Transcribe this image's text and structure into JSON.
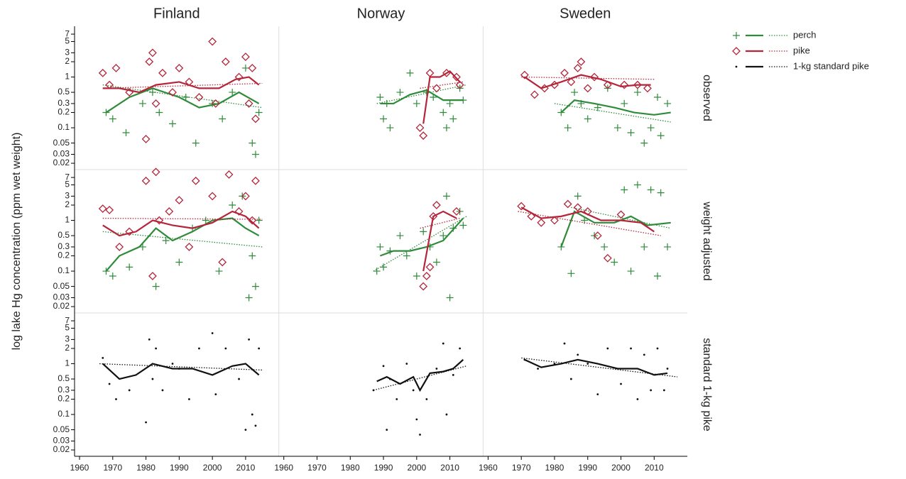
{
  "chart_data": {
    "type": "scatter",
    "y_label": "log lake Hg concentration (ppm wet weight)",
    "log_y": true,
    "columns": [
      "Finland",
      "Norway",
      "Sweden"
    ],
    "rows": [
      "observed",
      "weight adjusted",
      "standard 1-kg pike"
    ],
    "xlim": [
      1958.5,
      2020
    ],
    "xticks": [
      1960,
      1970,
      1980,
      1990,
      2000,
      2010
    ],
    "ylim": [
      0.015,
      10
    ],
    "yticks": [
      0.02,
      0.03,
      0.05,
      0.1,
      0.2,
      0.3,
      0.5,
      1,
      2,
      3,
      5,
      7
    ],
    "series": [
      {
        "name": "perch",
        "color": "#2e8b3a",
        "marker": "plus"
      },
      {
        "name": "pike",
        "color": "#b5253a",
        "marker": "diamond"
      },
      {
        "name": "1-kg standard pike",
        "color": "#111111",
        "marker": "dot"
      }
    ],
    "panels": [
      [
        [
          {
            "series": 0,
            "x": [
              1968,
              1970,
              1974,
              1979,
              1982,
              1984,
              1988,
              1992,
              1995,
              2000,
              2003,
              2006,
              2010,
              2012,
              2013,
              2014
            ],
            "values": [
              0.2,
              0.15,
              0.08,
              0.3,
              0.5,
              0.2,
              0.12,
              0.4,
              0.05,
              0.3,
              0.15,
              0.5,
              1.5,
              0.05,
              0.03,
              0.2
            ],
            "smooth_x": [
              1968,
              1975,
              1982,
              1990,
              1996,
              2002,
              2008,
              2014
            ],
            "smooth": [
              0.2,
              0.4,
              0.6,
              0.4,
              0.25,
              0.3,
              0.5,
              0.3
            ],
            "trend_x": [
              1967,
              2015
            ],
            "trend": [
              0.7,
              0.25
            ]
          },
          {
            "series": 1,
            "x": [
              1967,
              1969,
              1971,
              1975,
              1980,
              1981,
              1982,
              1983,
              1985,
              1988,
              1990,
              1993,
              1996,
              2000,
              2001,
              2004,
              2008,
              2010,
              2011,
              2012,
              2013
            ],
            "values": [
              1.2,
              0.7,
              1.5,
              0.5,
              0.06,
              2,
              3,
              0.3,
              1.2,
              0.5,
              1.5,
              0.8,
              0.4,
              5,
              0.3,
              2,
              1,
              2.5,
              0.3,
              1.5,
              0.15
            ],
            "smooth_x": [
              1967,
              1972,
              1978,
              1983,
              1990,
              1996,
              2002,
              2007,
              2011,
              2014
            ],
            "smooth": [
              0.6,
              0.6,
              0.5,
              0.7,
              0.8,
              0.6,
              0.6,
              0.9,
              1,
              0.7
            ],
            "trend_x": [
              1967,
              2015
            ],
            "trend": [
              0.6,
              0.75
            ]
          }
        ],
        [
          {
            "series": 0,
            "x": [
              1989,
              1990,
              1991,
              1992,
              1995,
              1998,
              2000,
              2003,
              2005,
              2008,
              2009,
              2010,
              2011,
              2013,
              2014
            ],
            "values": [
              0.4,
              0.15,
              0.3,
              0.1,
              0.5,
              1.2,
              0.3,
              0.5,
              0.4,
              0.2,
              0.1,
              0.3,
              0.15,
              0.6,
              0.35
            ],
            "smooth_x": [
              1989,
              1993,
              1998,
              2003,
              2008,
              2014
            ],
            "smooth": [
              0.3,
              0.3,
              0.45,
              0.55,
              0.35,
              0.35
            ],
            "trend_x": [
              1988,
              2015
            ],
            "trend": [
              0.3,
              0.7
            ]
          },
          {
            "series": 1,
            "x": [
              2001,
              2002,
              2004,
              2006,
              2009,
              2012,
              2013
            ],
            "values": [
              0.1,
              0.07,
              1.2,
              0.6,
              1.2,
              1,
              0.7
            ],
            "smooth_x": [
              2002,
              2004,
              2007,
              2010,
              2013
            ],
            "smooth": [
              0.12,
              1,
              1,
              1.3,
              0.8
            ],
            "trend_x": [
              2001,
              2014
            ],
            "trend": [
              0.6,
              0.8
            ]
          }
        ],
        [
          {
            "series": 0,
            "x": [
              1982,
              1984,
              1986,
              1988,
              1990,
              1993,
              1996,
              1999,
              2001,
              2003,
              2005,
              2007,
              2009,
              2011,
              2012,
              2014
            ],
            "values": [
              0.2,
              0.1,
              0.5,
              0.3,
              0.15,
              0.25,
              0.6,
              0.1,
              0.3,
              0.08,
              0.5,
              0.05,
              0.1,
              0.4,
              0.07,
              0.3
            ],
            "smooth_x": [
              1982,
              1986,
              1992,
              1998,
              2004,
              2010,
              2015
            ],
            "smooth": [
              0.2,
              0.35,
              0.3,
              0.25,
              0.2,
              0.18,
              0.2
            ],
            "trend_x": [
              1980,
              2015
            ],
            "trend": [
              0.3,
              0.13
            ]
          },
          {
            "series": 1,
            "x": [
              1971,
              1974,
              1977,
              1980,
              1983,
              1985,
              1987,
              1988,
              1990,
              1992,
              1996,
              2001,
              2005,
              2008
            ],
            "values": [
              1.1,
              0.45,
              0.6,
              0.7,
              1.2,
              0.8,
              1.5,
              2,
              0.6,
              1,
              0.7,
              0.7,
              0.7,
              0.6
            ],
            "smooth_x": [
              1971,
              1976,
              1982,
              1988,
              1994,
              2000,
              2005,
              2009
            ],
            "smooth": [
              1,
              0.6,
              0.8,
              1.1,
              0.9,
              0.65,
              0.7,
              0.7
            ],
            "trend_x": [
              1970,
              2010
            ],
            "trend": [
              1,
              0.9
            ]
          }
        ]
      ],
      [
        [
          {
            "series": 0,
            "x": [
              1968,
              1970,
              1975,
              1979,
              1983,
              1986,
              1990,
              1994,
              1998,
              2002,
              2006,
              2009,
              2011,
              2012,
              2013,
              2014
            ],
            "values": [
              0.1,
              0.08,
              0.12,
              0.3,
              0.05,
              0.4,
              0.15,
              0.7,
              1,
              0.1,
              2,
              3,
              0.03,
              0.2,
              0.05,
              1
            ],
            "smooth_x": [
              1968,
              1972,
              1978,
              1983,
              1988,
              1994,
              2000,
              2006,
              2010,
              2014
            ],
            "smooth": [
              0.1,
              0.2,
              0.3,
              0.7,
              0.4,
              0.6,
              1,
              1.1,
              0.7,
              0.5
            ],
            "trend_x": [
              1967,
              2015
            ],
            "trend": [
              0.6,
              0.3
            ]
          },
          {
            "series": 1,
            "x": [
              1967,
              1969,
              1972,
              1975,
              1980,
              1982,
              1983,
              1984,
              1987,
              1990,
              1993,
              1995,
              2000,
              2003,
              2005,
              2008,
              2010,
              2012,
              2013
            ],
            "values": [
              1.7,
              1.6,
              0.3,
              0.6,
              6,
              0.08,
              9,
              1,
              1.5,
              2.5,
              0.3,
              6,
              3,
              0.15,
              8,
              1.5,
              3,
              1,
              6
            ],
            "smooth_x": [
              1967,
              1972,
              1977,
              1982,
              1988,
              1994,
              2000,
              2006,
              2010,
              2014
            ],
            "smooth": [
              0.8,
              0.5,
              0.6,
              1,
              0.8,
              0.7,
              0.9,
              1.5,
              1.2,
              0.7
            ],
            "trend_x": [
              1967,
              2015
            ],
            "trend": [
              1.1,
              1.05
            ]
          }
        ],
        [
          {
            "series": 0,
            "x": [
              1988,
              1989,
              1990,
              1992,
              1995,
              1997,
              2000,
              2002,
              2004,
              2006,
              2008,
              2009,
              2010,
              2011,
              2013,
              2014
            ],
            "values": [
              0.1,
              0.3,
              0.12,
              0.25,
              0.5,
              0.2,
              0.08,
              0.6,
              0.3,
              0.15,
              0.5,
              3,
              0.03,
              0.7,
              1.5,
              0.8
            ],
            "smooth_x": [
              1989,
              1993,
              1998,
              2003,
              2008,
              2014
            ],
            "smooth": [
              0.2,
              0.25,
              0.25,
              0.3,
              0.4,
              1.1
            ],
            "trend_x": [
              1987,
              2015
            ],
            "trend": [
              0.1,
              1.2
            ]
          },
          {
            "series": 1,
            "x": [
              2002,
              2003,
              2004,
              2005,
              2006,
              2012
            ],
            "values": [
              0.05,
              0.08,
              0.12,
              1.2,
              2,
              1.5
            ],
            "smooth_x": [
              2002,
              2005,
              2008,
              2012
            ],
            "smooth": [
              0.1,
              1.2,
              1.5,
              1.1
            ],
            "trend_x": [
              2001,
              2013
            ],
            "trend": [
              0.7,
              1.1
            ]
          }
        ],
        [
          {
            "series": 0,
            "x": [
              1982,
              1985,
              1987,
              1989,
              1992,
              1995,
              1998,
              2001,
              2003,
              2005,
              2007,
              2009,
              2011,
              2012,
              2014
            ],
            "values": [
              0.3,
              0.09,
              3,
              1,
              0.5,
              0.3,
              0.15,
              4,
              0.1,
              5,
              0.3,
              4,
              0.08,
              3.5,
              0.3
            ],
            "smooth_x": [
              1982,
              1986,
              1992,
              1998,
              2003,
              2008,
              2015
            ],
            "smooth": [
              0.3,
              1.5,
              0.9,
              0.9,
              1.2,
              0.8,
              0.9
            ],
            "trend_x": [
              1985,
              2015
            ],
            "trend": [
              1.8,
              0.7
            ]
          },
          {
            "series": 1,
            "x": [
              1970,
              1973,
              1976,
              1980,
              1984,
              1987,
              1990,
              1993,
              1996,
              2000
            ],
            "values": [
              1.9,
              1.2,
              0.9,
              1,
              2.1,
              1.8,
              1.5,
              0.5,
              0.18,
              1.3
            ],
            "smooth_x": [
              1970,
              1976,
              1982,
              1988,
              1994,
              2000,
              2006,
              2010
            ],
            "smooth": [
              1.8,
              1.1,
              1.2,
              1.5,
              1,
              1,
              0.9,
              0.6
            ],
            "trend_x": [
              1969,
              2012
            ],
            "trend": [
              1.5,
              0.5
            ]
          }
        ]
      ],
      [
        [
          {
            "series": 2,
            "x": [
              1967,
              1969,
              1971,
              1975,
              1980,
              1981,
              1982,
              1983,
              1985,
              1988,
              1990,
              1993,
              1996,
              2000,
              2001,
              2004,
              2008,
              2010,
              2011,
              2012,
              2013,
              2014
            ],
            "values": [
              1.3,
              0.4,
              0.2,
              0.3,
              0.07,
              3,
              0.5,
              2,
              0.3,
              1,
              0.8,
              0.2,
              2,
              4,
              0.25,
              2,
              0.5,
              0.05,
              3,
              0.1,
              0.06,
              2
            ],
            "smooth_x": [
              1967,
              1972,
              1977,
              1982,
              1988,
              1994,
              2000,
              2006,
              2010,
              2014
            ],
            "smooth": [
              1,
              0.5,
              0.6,
              1,
              0.8,
              0.8,
              0.6,
              0.9,
              1,
              0.6
            ],
            "trend_x": [
              1966,
              2015
            ],
            "trend": [
              1,
              0.75
            ]
          }
        ],
        [
          {
            "series": 2,
            "x": [
              1987,
              1990,
              1991,
              1992,
              1994,
              1997,
              1999,
              2000,
              2001,
              2003,
              2006,
              2008,
              2009,
              2011,
              2013
            ],
            "values": [
              0.3,
              0.9,
              0.05,
              0.5,
              0.2,
              1,
              0.3,
              0.08,
              0.04,
              0.2,
              0.8,
              2.5,
              0.1,
              0.6,
              2
            ],
            "smooth_x": [
              1988,
              1991,
              1995,
              1999,
              2001,
              2004,
              2008,
              2011,
              2014
            ],
            "smooth": [
              0.45,
              0.55,
              0.4,
              0.55,
              0.3,
              0.65,
              0.7,
              0.8,
              1.2
            ],
            "trend_x": [
              1987,
              2015
            ],
            "trend": [
              0.3,
              0.9
            ]
          }
        ],
        [
          {
            "series": 2,
            "x": [
              1971,
              1975,
              1980,
              1983,
              1985,
              1987,
              1990,
              1993,
              1996,
              2000,
              2003,
              2005,
              2007,
              2009,
              2011,
              2013,
              2014
            ],
            "values": [
              1.2,
              0.8,
              1,
              2.5,
              0.5,
              1.5,
              1,
              0.25,
              2,
              0.4,
              2,
              0.2,
              1.5,
              0.3,
              2,
              0.3,
              0.8
            ],
            "smooth_x": [
              1971,
              1976,
              1982,
              1987,
              1993,
              1999,
              2005,
              2010,
              2014
            ],
            "smooth": [
              1.2,
              0.85,
              1,
              1.2,
              1,
              0.8,
              0.8,
              0.6,
              0.65
            ],
            "trend_x": [
              1970,
              2017
            ],
            "trend": [
              1.3,
              0.55
            ]
          }
        ]
      ]
    ]
  }
}
